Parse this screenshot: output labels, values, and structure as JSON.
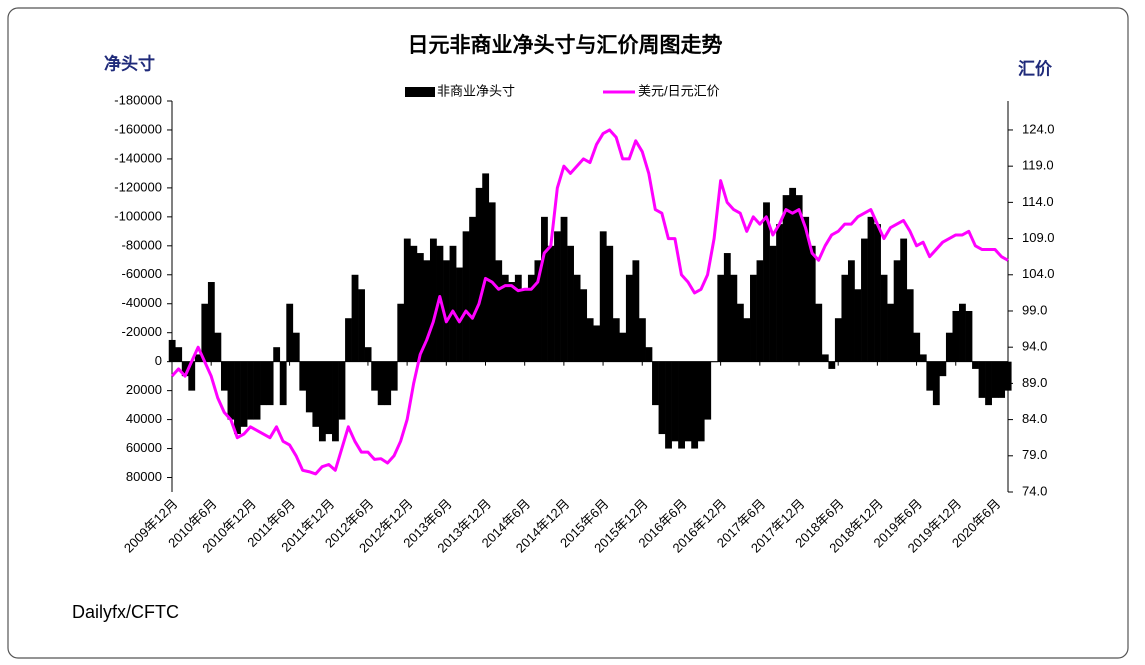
{
  "chart_data": {
    "type": "combo",
    "title": "日元非商业净头寸与汇价周图走势",
    "ylabel": "净头寸",
    "y2label": "汇价",
    "source": "Dailyfx/CFTC",
    "categories": [
      "2009年12月",
      null,
      null,
      null,
      null,
      null,
      "2010年6月",
      null,
      null,
      null,
      null,
      null,
      "2010年12月",
      null,
      null,
      null,
      null,
      null,
      "2011年6月",
      null,
      null,
      null,
      null,
      null,
      "2011年12月",
      null,
      null,
      null,
      null,
      null,
      "2012年6月",
      null,
      null,
      null,
      null,
      null,
      "2012年12月",
      null,
      null,
      null,
      null,
      null,
      "2013年6月",
      null,
      null,
      null,
      null,
      null,
      "2013年12月",
      null,
      null,
      null,
      null,
      null,
      "2014年6月",
      null,
      null,
      null,
      null,
      null,
      "2014年12月",
      null,
      null,
      null,
      null,
      null,
      "2015年6月",
      null,
      null,
      null,
      null,
      null,
      "2015年12月",
      null,
      null,
      null,
      null,
      null,
      "2016年6月",
      null,
      null,
      null,
      null,
      null,
      "2016年12月",
      null,
      null,
      null,
      null,
      null,
      "2017年6月",
      null,
      null,
      null,
      null,
      null,
      "2017年12月",
      null,
      null,
      null,
      null,
      null,
      "2018年6月",
      null,
      null,
      null,
      null,
      null,
      "2018年12月",
      null,
      null,
      null,
      null,
      null,
      "2019年6月",
      null,
      null,
      null,
      null,
      null,
      "2019年12月",
      null,
      null,
      null,
      null,
      null,
      "2020年6月",
      null,
      null
    ],
    "series": [
      {
        "name": "非商业净头寸",
        "type": "bar",
        "color": "#000000",
        "values": [
          -15000,
          -10000,
          10000,
          20000,
          -5000,
          -40000,
          -55000,
          -20000,
          20000,
          40000,
          50000,
          45000,
          40000,
          40000,
          30000,
          30000,
          -10000,
          30000,
          -40000,
          -20000,
          20000,
          35000,
          45000,
          55000,
          50000,
          55000,
          40000,
          -30000,
          -60000,
          -50000,
          -10000,
          20000,
          30000,
          30000,
          20000,
          -40000,
          -85000,
          -80000,
          -75000,
          -70000,
          -85000,
          -80000,
          -70000,
          -80000,
          -65000,
          -90000,
          -100000,
          -120000,
          -130000,
          -110000,
          -70000,
          -60000,
          -55000,
          -60000,
          -50000,
          -60000,
          -70000,
          -100000,
          -80000,
          -90000,
          -100000,
          -80000,
          -60000,
          -50000,
          -30000,
          -25000,
          -90000,
          -80000,
          -30000,
          -20000,
          -60000,
          -70000,
          -30000,
          -10000,
          30000,
          50000,
          60000,
          55000,
          60000,
          55000,
          60000,
          55000,
          40000,
          0,
          -60000,
          -75000,
          -60000,
          -40000,
          -30000,
          -60000,
          -70000,
          -110000,
          -80000,
          -95000,
          -115000,
          -120000,
          -115000,
          -100000,
          -80000,
          -40000,
          -5000,
          5000,
          -30000,
          -60000,
          -70000,
          -50000,
          -85000,
          -100000,
          -95000,
          -60000,
          -40000,
          -70000,
          -85000,
          -50000,
          -20000,
          -5000,
          20000,
          30000,
          10000,
          -20000,
          -35000,
          -40000,
          -35000,
          5000,
          25000,
          30000,
          25000,
          25000,
          20000
        ]
      },
      {
        "name": "美元/日元汇价",
        "type": "line",
        "axis": "y2",
        "color": "#ff00ff",
        "values": [
          90,
          91,
          90,
          92,
          94,
          92,
          90,
          87,
          85,
          84,
          81.5,
          82,
          83,
          82.5,
          82,
          81.5,
          83,
          81,
          80.5,
          79,
          77,
          76.8,
          76.5,
          77.5,
          77.8,
          77,
          80,
          83,
          81,
          79.5,
          79.5,
          78.5,
          78.6,
          78,
          79,
          81,
          84,
          89,
          93,
          95,
          97.5,
          101,
          97.5,
          99,
          97.5,
          99,
          98,
          100,
          103.5,
          103,
          102,
          102.5,
          102.5,
          101.8,
          102,
          102,
          103,
          107,
          108,
          116,
          119,
          118,
          119,
          120,
          119.5,
          122,
          123.5,
          124,
          123,
          120,
          120,
          122.5,
          121,
          118,
          113,
          112.5,
          109,
          109,
          104,
          103,
          101.5,
          102,
          104,
          109,
          117,
          114,
          113,
          112.5,
          110,
          112,
          111,
          112,
          109.5,
          111,
          113,
          112.5,
          113,
          110.5,
          107,
          106,
          108,
          109.5,
          110,
          111,
          111,
          112,
          112.5,
          113,
          111,
          109,
          110.5,
          111,
          111.5,
          110,
          108,
          108.5,
          106.5,
          107.5,
          108.5,
          109,
          109.5,
          109.5,
          110,
          108,
          107.5,
          107.5,
          107.5,
          106.5,
          106
        ]
      }
    ],
    "ylim": [
      90000,
      -180000
    ],
    "yticks": [
      80000,
      60000,
      40000,
      20000,
      0,
      -20000,
      -40000,
      -60000,
      -80000,
      -100000,
      -120000,
      -140000,
      -160000,
      -180000
    ],
    "y2lim": [
      74,
      128
    ],
    "y2ticks": [
      {
        "value": 74,
        "label": "74.0"
      },
      {
        "value": 79,
        "label": "79.0"
      },
      {
        "value": 84,
        "label": "84.0"
      },
      {
        "value": 89,
        "label": "89.0"
      },
      {
        "value": 94,
        "label": "94.0"
      },
      {
        "value": 99,
        "label": "99.0"
      },
      {
        "value": 104,
        "label": "104.0"
      },
      {
        "value": 109,
        "label": "109.0"
      },
      {
        "value": 114,
        "label": "114.0"
      },
      {
        "value": 119,
        "label": "119.0"
      },
      {
        "value": 124,
        "label": "124.0"
      }
    ],
    "legend": "top"
  }
}
